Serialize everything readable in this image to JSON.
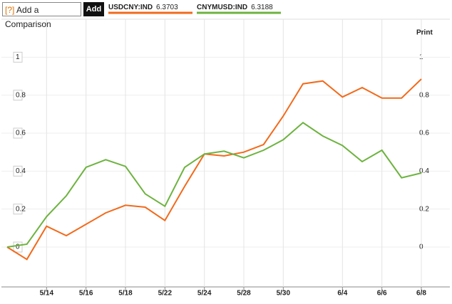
{
  "header": {
    "help": "[?]",
    "input_placeholder": "Add a Comparison",
    "add_button": "Add",
    "print": "Print"
  },
  "chart_data": {
    "type": "line",
    "categories": [
      null,
      null,
      "5/14",
      null,
      "5/16",
      null,
      "5/18",
      null,
      "5/22",
      null,
      "5/24",
      null,
      "5/28",
      null,
      "5/30",
      null,
      null,
      "6/4",
      null,
      "6/6",
      null,
      "6/8"
    ],
    "series": [
      {
        "name": "USDCNY:IND",
        "last": 6.3703,
        "color": "#f26a1b",
        "values": [
          0,
          -0.065,
          0.11,
          0.06,
          0.12,
          0.18,
          0.22,
          0.21,
          0.14,
          0.32,
          0.49,
          0.48,
          0.5,
          0.54,
          0.69,
          0.86,
          0.875,
          0.79,
          0.84,
          0.785,
          0.785,
          0.885
        ]
      },
      {
        "name": "CNYMUSD:IND",
        "last": 6.3188,
        "color": "#6db33f",
        "values": [
          0,
          0.015,
          0.16,
          0.27,
          0.42,
          0.46,
          0.425,
          0.28,
          0.215,
          0.42,
          0.49,
          0.505,
          0.47,
          0.51,
          0.565,
          0.655,
          0.585,
          0.535,
          0.45,
          0.51,
          0.365,
          0.39
        ]
      }
    ],
    "ylim": [
      -0.21,
      1.2
    ],
    "yticks": [
      0,
      0.2,
      0.4,
      0.6,
      0.8,
      1
    ],
    "grid": true
  }
}
